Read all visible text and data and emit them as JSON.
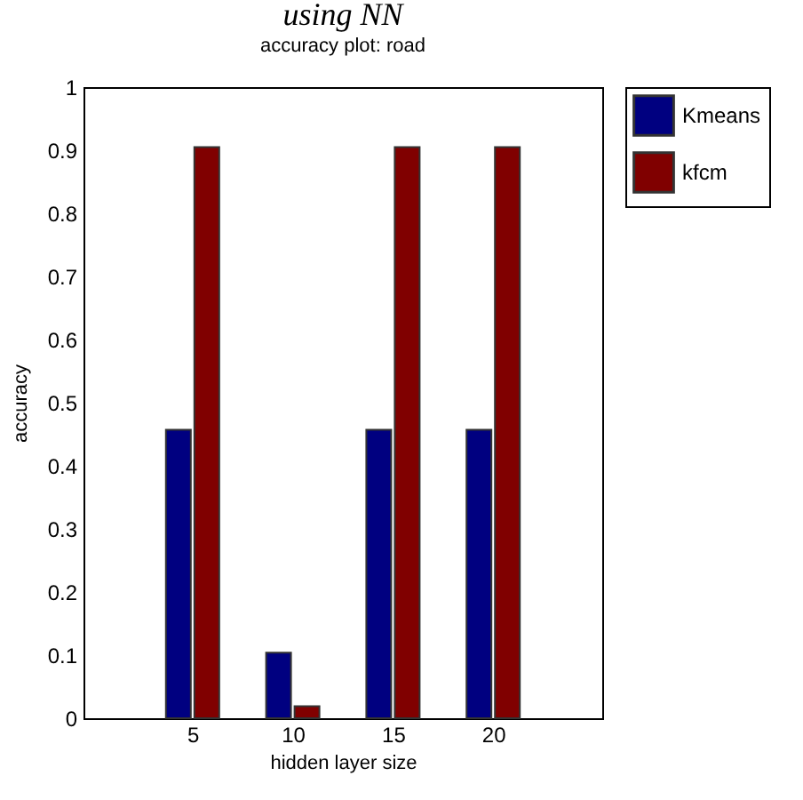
{
  "chart_data": {
    "type": "bar",
    "title": "using NN",
    "subtitle": "accuracy plot: road",
    "xlabel": "hidden layer size",
    "ylabel": "accuracy",
    "x": [
      5,
      10,
      15,
      20
    ],
    "xlim": [
      0,
      25
    ],
    "xticks": [
      5,
      10,
      15,
      20
    ],
    "ylim": [
      0,
      1
    ],
    "yticks": [
      0,
      0.1,
      0.2,
      0.3,
      0.4,
      0.5,
      0.6,
      0.7,
      0.8,
      0.9,
      1
    ],
    "series": [
      {
        "name": "Kmeans",
        "color": "#000080",
        "values": [
          0.457,
          0.104,
          0.457,
          0.457
        ]
      },
      {
        "name": "kfcm",
        "color": "#800000",
        "values": [
          0.905,
          0.019,
          0.905,
          0.905
        ]
      }
    ],
    "grid": false,
    "legend": "top right"
  }
}
